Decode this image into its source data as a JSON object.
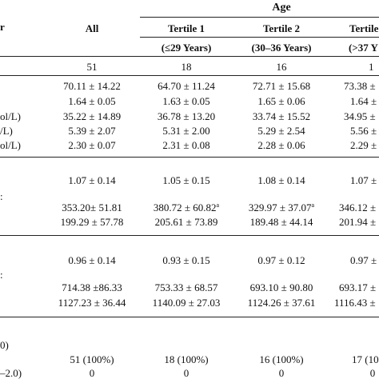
{
  "header": {
    "age_group": "Age",
    "all": "All",
    "tertiles": [
      {
        "label": "Tertile 1",
        "range": "(≤29 Years)"
      },
      {
        "label": "Tertile 2",
        "range": "(30–36 Years)"
      },
      {
        "label": "Tertile 3",
        "range": "(>37 Y"
      }
    ],
    "left_cut": "r"
  },
  "counts": {
    "all": "51",
    "t1": "18",
    "t2": "16",
    "t3": "1"
  },
  "rows_block1": [
    {
      "label": "",
      "all": "70.11 ± 14.22",
      "t1": "64.70 ± 11.24",
      "t2": "72.71 ± 15.68",
      "t3": "73.38 ±"
    },
    {
      "label": "",
      "all": "1.64 ± 0.05",
      "t1": "1.63 ± 0.05",
      "t2": "1.65 ± 0.06",
      "t3": "1.64 ±"
    },
    {
      "label": "ol/L)",
      "all": "35.22 ± 14.89",
      "t1": "36.78 ± 13.20",
      "t2": "33.74 ± 15.52",
      "t3": "34.95 ±"
    },
    {
      "label": "/L)",
      "all": "5.39 ± 2.07",
      "t1": "5.31 ± 2.00",
      "t2": "5.29 ± 2.54",
      "t3": "5.56 ±"
    },
    {
      "label": "ol/L)",
      "all": "2.30 ± 0.07",
      "t1": "2.31 ± 0.08",
      "t2": "2.28 ± 0.06",
      "t3": "2.29 ±"
    }
  ],
  "rows_block2": [
    {
      "label": "",
      "all": "1.07 ± 0.14",
      "t1": "1.05 ± 0.15",
      "t2": "1.08 ± 0.14",
      "t3": "1.07 ±"
    },
    {
      "label": ":",
      "all": "353.20± 51.81",
      "t1": "380.72 ± 60.82",
      "t1_sup": "a",
      "t2": "329.97 ± 37.07",
      "t2_sup": "a",
      "t3": "346.12 ±"
    },
    {
      "label": "",
      "all": "199.29 ± 57.78",
      "t1": "205.61 ± 73.89",
      "t2": "189.48 ± 44.14",
      "t3": "201.94 ±"
    }
  ],
  "rows_block3": [
    {
      "label": "",
      "all": "0.96 ± 0.14",
      "t1": "0.93 ± 0.15",
      "t2": "0.97 ± 0.12",
      "t3": "0.97 ±"
    },
    {
      "label": ":",
      "all": "714.38 ±86.33",
      "t1": "753.33 ± 68.57",
      "t2": "693.10 ± 90.80",
      "t3": "693.17 ±"
    },
    {
      "label": "",
      "all": "1127.23 ± 36.44",
      "t1": "1140.09 ± 27.03",
      "t2": "1124.26 ± 37.61",
      "t3": "1116.43 ±"
    }
  ],
  "rows_block4": [
    {
      "label": "0)",
      "all": "",
      "t1": "",
      "t2": "",
      "t3": ""
    },
    {
      "label": "",
      "all": "51 (100%)",
      "t1": "18 (100%)",
      "t2": "16 (100%)",
      "t3": "17 (100"
    },
    {
      "label": "–2.0)",
      "all": "0",
      "t1": "0",
      "t2": "0",
      "t3": "0"
    }
  ]
}
